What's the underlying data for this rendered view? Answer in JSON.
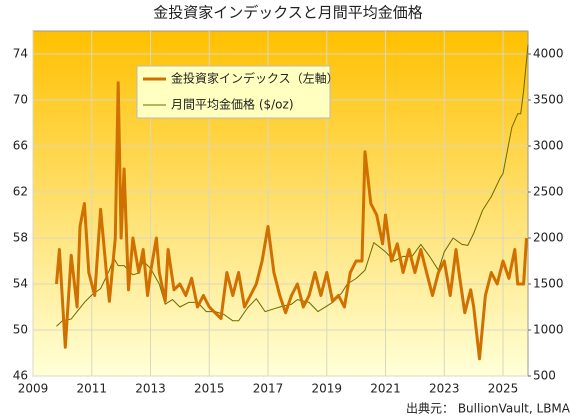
{
  "chart_data": {
    "type": "line",
    "title": "金投資家インデックスと月間平均金価格",
    "source": "出典元： BullionVault, LBMA",
    "xlim": [
      2009,
      2025.85
    ],
    "xticks": [
      2009,
      2011,
      2013,
      2015,
      2017,
      2019,
      2021,
      2023,
      2025
    ],
    "ylim": [
      46,
      76
    ],
    "yticks": [
      46,
      50,
      54,
      58,
      62,
      66,
      70,
      74
    ],
    "y2lim": [
      500,
      4250
    ],
    "y2ticks": [
      500,
      1000,
      1500,
      2000,
      2500,
      3000,
      3500,
      4000
    ],
    "grid": true,
    "legend": "top-left",
    "series": [
      {
        "name": "金投資家インデックス（左軸）",
        "color": "#d07000",
        "axis": "y",
        "x": [
          2009.8,
          2009.9,
          2010.1,
          2010.3,
          2010.5,
          2010.6,
          2010.75,
          2010.9,
          2011.1,
          2011.3,
          2011.5,
          2011.6,
          2011.8,
          2011.9,
          2012.0,
          2012.1,
          2012.25,
          2012.4,
          2012.6,
          2012.75,
          2012.9,
          2013.0,
          2013.2,
          2013.3,
          2013.5,
          2013.6,
          2013.8,
          2014.0,
          2014.2,
          2014.4,
          2014.6,
          2014.8,
          2015.0,
          2015.2,
          2015.4,
          2015.6,
          2015.8,
          2016.0,
          2016.2,
          2016.4,
          2016.6,
          2016.8,
          2017.0,
          2017.2,
          2017.4,
          2017.6,
          2017.8,
          2018.0,
          2018.2,
          2018.4,
          2018.6,
          2018.8,
          2019.0,
          2019.2,
          2019.4,
          2019.6,
          2019.8,
          2020.0,
          2020.2,
          2020.3,
          2020.5,
          2020.7,
          2020.9,
          2021.0,
          2021.2,
          2021.4,
          2021.6,
          2021.8,
          2022.0,
          2022.2,
          2022.4,
          2022.6,
          2022.8,
          2023.0,
          2023.2,
          2023.4,
          2023.5,
          2023.7,
          2023.9,
          2024.0,
          2024.2,
          2024.4,
          2024.6,
          2024.8,
          2025.0,
          2025.2,
          2025.4,
          2025.5,
          2025.7,
          2025.8
        ],
        "values": [
          54,
          57,
          48.5,
          56.5,
          52,
          59,
          61,
          55,
          53,
          60.5,
          55,
          52.5,
          58,
          71.5,
          58,
          64,
          53.5,
          58,
          55,
          57,
          53,
          55,
          58,
          55,
          52.5,
          57,
          53.5,
          54,
          53,
          54.5,
          52,
          53,
          52,
          51.5,
          51,
          55,
          53,
          55,
          52,
          53,
          54,
          56,
          59,
          55,
          53,
          51.5,
          53,
          54,
          52,
          53,
          55,
          53,
          55,
          52.5,
          53,
          52,
          55,
          56,
          56,
          65.5,
          61,
          60,
          57.5,
          60,
          56,
          57.5,
          55,
          57,
          55,
          57,
          55,
          53,
          55,
          56,
          53,
          57,
          55,
          51.5,
          53.5,
          52,
          47.5,
          53,
          55,
          54,
          56,
          54.5,
          57,
          54,
          54,
          58
        ]
      },
      {
        "name": "月間平均金価格 ($/oz)",
        "color": "#6b6b00",
        "axis": "y2",
        "x": [
          2009.8,
          2010.0,
          2010.3,
          2010.5,
          2010.75,
          2011.0,
          2011.3,
          2011.6,
          2011.75,
          2011.9,
          2012.1,
          2012.4,
          2012.6,
          2012.75,
          2013.0,
          2013.3,
          2013.5,
          2013.75,
          2014.0,
          2014.3,
          2014.6,
          2014.9,
          2015.2,
          2015.5,
          2015.8,
          2016.0,
          2016.3,
          2016.6,
          2016.9,
          2017.2,
          2017.5,
          2017.8,
          2018.0,
          2018.4,
          2018.7,
          2018.9,
          2019.2,
          2019.5,
          2019.7,
          2020.0,
          2020.3,
          2020.6,
          2021.0,
          2021.3,
          2021.6,
          2021.9,
          2022.2,
          2022.5,
          2022.8,
          2023.0,
          2023.3,
          2023.6,
          2023.8,
          2024.0,
          2024.3,
          2024.6,
          2024.9,
          2025.0,
          2025.3,
          2025.5,
          2025.6,
          2025.7,
          2025.85
        ],
        "values": [
          1040,
          1100,
          1120,
          1200,
          1300,
          1380,
          1450,
          1650,
          1780,
          1700,
          1700,
          1600,
          1620,
          1750,
          1670,
          1500,
          1280,
          1330,
          1250,
          1300,
          1300,
          1200,
          1200,
          1170,
          1100,
          1100,
          1240,
          1340,
          1200,
          1230,
          1260,
          1280,
          1330,
          1300,
          1200,
          1240,
          1300,
          1400,
          1500,
          1560,
          1650,
          1950,
          1850,
          1750,
          1800,
          1800,
          1930,
          1800,
          1650,
          1850,
          2000,
          1930,
          1920,
          2050,
          2300,
          2450,
          2650,
          2700,
          3200,
          3350,
          3350,
          3600,
          4100
        ]
      }
    ]
  }
}
